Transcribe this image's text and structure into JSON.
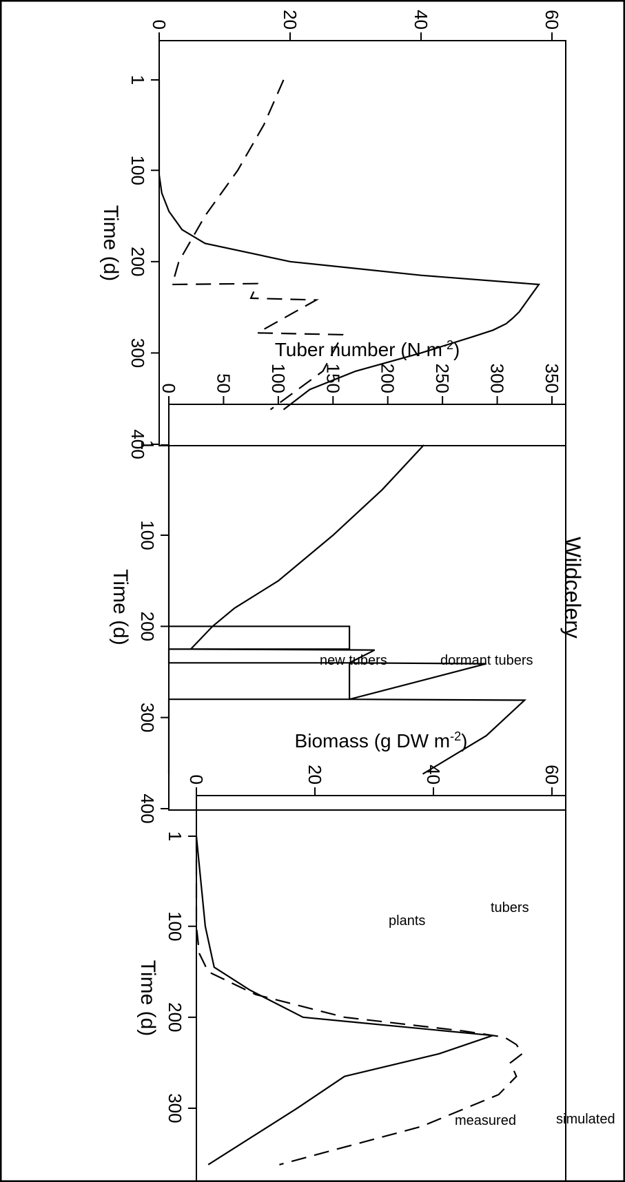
{
  "figure_title": "Wildcelery",
  "chart_data": [
    {
      "type": "line",
      "panel": "bottom",
      "xlabel": "Time (d)",
      "ylabel": "Biomass (g DW m",
      "ylabel_sup": "-2",
      "ylabel_close": ")",
      "x_ticks": [
        "1",
        "100",
        "200",
        "300",
        "400"
      ],
      "y_ticks": [
        "60",
        "40",
        "20",
        "0"
      ],
      "xlim": [
        1,
        400
      ],
      "ylim": [
        0,
        60
      ],
      "series": [
        {
          "name": "plants",
          "style": "solid",
          "x": [
            1,
            50,
            105,
            125,
            145,
            165,
            180,
            200,
            215,
            225,
            235,
            245,
            255,
            262,
            268,
            275,
            282,
            300,
            320,
            340,
            362
          ],
          "y": [
            0,
            0,
            0,
            0.4,
            1.5,
            3.5,
            7,
            20,
            40,
            58,
            57,
            56,
            55,
            54,
            53,
            51,
            48,
            40,
            30,
            23,
            19
          ]
        },
        {
          "name": "tubers",
          "style": "dashed",
          "x": [
            1,
            50,
            100,
            150,
            200,
            225,
            224,
            240,
            242,
            278,
            280,
            320,
            362
          ],
          "y": [
            19,
            16,
            12,
            7,
            3,
            2,
            15,
            14,
            24,
            15,
            28,
            25,
            17
          ]
        }
      ],
      "annotations": [
        "tubers",
        "plants"
      ]
    },
    {
      "type": "line",
      "panel": "middle",
      "title": "Wildcelery",
      "xlabel": "Time (d)",
      "ylabel": "Tuber number (N m",
      "ylabel_sup": "-2",
      "ylabel_close": ")",
      "x_ticks": [
        "1",
        "100",
        "200",
        "300",
        "400"
      ],
      "y_ticks": [
        "350",
        "300",
        "250",
        "200",
        "150",
        "100",
        "50",
        "0"
      ],
      "xlim": [
        1,
        400
      ],
      "ylim": [
        0,
        350
      ],
      "series": [
        {
          "name": "dormant tubers",
          "style": "solid",
          "x": [
            1,
            50,
            100,
            150,
            180,
            200,
            225,
            226,
            240,
            241,
            280,
            281,
            320,
            362
          ],
          "y": [
            233,
            195,
            150,
            100,
            60,
            40,
            20,
            188,
            165,
            290,
            165,
            325,
            290,
            232
          ]
        },
        {
          "name": "new tubers",
          "style": "solid",
          "x": [
            1,
            200,
            200,
            225,
            225,
            240,
            240,
            280,
            280,
            362
          ],
          "y": [
            0,
            0,
            165,
            165,
            0,
            0,
            165,
            165,
            0,
            0
          ]
        }
      ],
      "annotations": [
        "dormant tubers",
        "new tubers"
      ]
    },
    {
      "type": "line",
      "panel": "top",
      "xlabel": "Time (d)",
      "ylabel": "Biomass (g DW m",
      "ylabel_sup": "-2",
      "ylabel_close": ")",
      "x_ticks": [
        "1",
        "100",
        "200",
        "300",
        "400"
      ],
      "y_ticks": [
        "60",
        "40",
        "20",
        "0"
      ],
      "xlim": [
        1,
        400
      ],
      "ylim": [
        0,
        60
      ],
      "series": [
        {
          "name": "measured",
          "style": "solid",
          "x": [
            1,
            100,
            145,
            170,
            200,
            220,
            240,
            265,
            300,
            362
          ],
          "y": [
            0,
            1.5,
            3,
            9,
            18,
            50,
            41,
            25,
            17,
            2
          ]
        },
        {
          "name": "simulated",
          "style": "dashed",
          "x": [
            1,
            100,
            130,
            150,
            175,
            200,
            215,
            222,
            230,
            240,
            250,
            265,
            285,
            320,
            362
          ],
          "y": [
            0,
            0,
            0.5,
            2,
            10,
            25,
            45,
            52,
            54,
            55,
            53,
            54,
            51,
            38,
            14
          ]
        }
      ],
      "annotations": [
        "simulated",
        "measured"
      ]
    }
  ]
}
